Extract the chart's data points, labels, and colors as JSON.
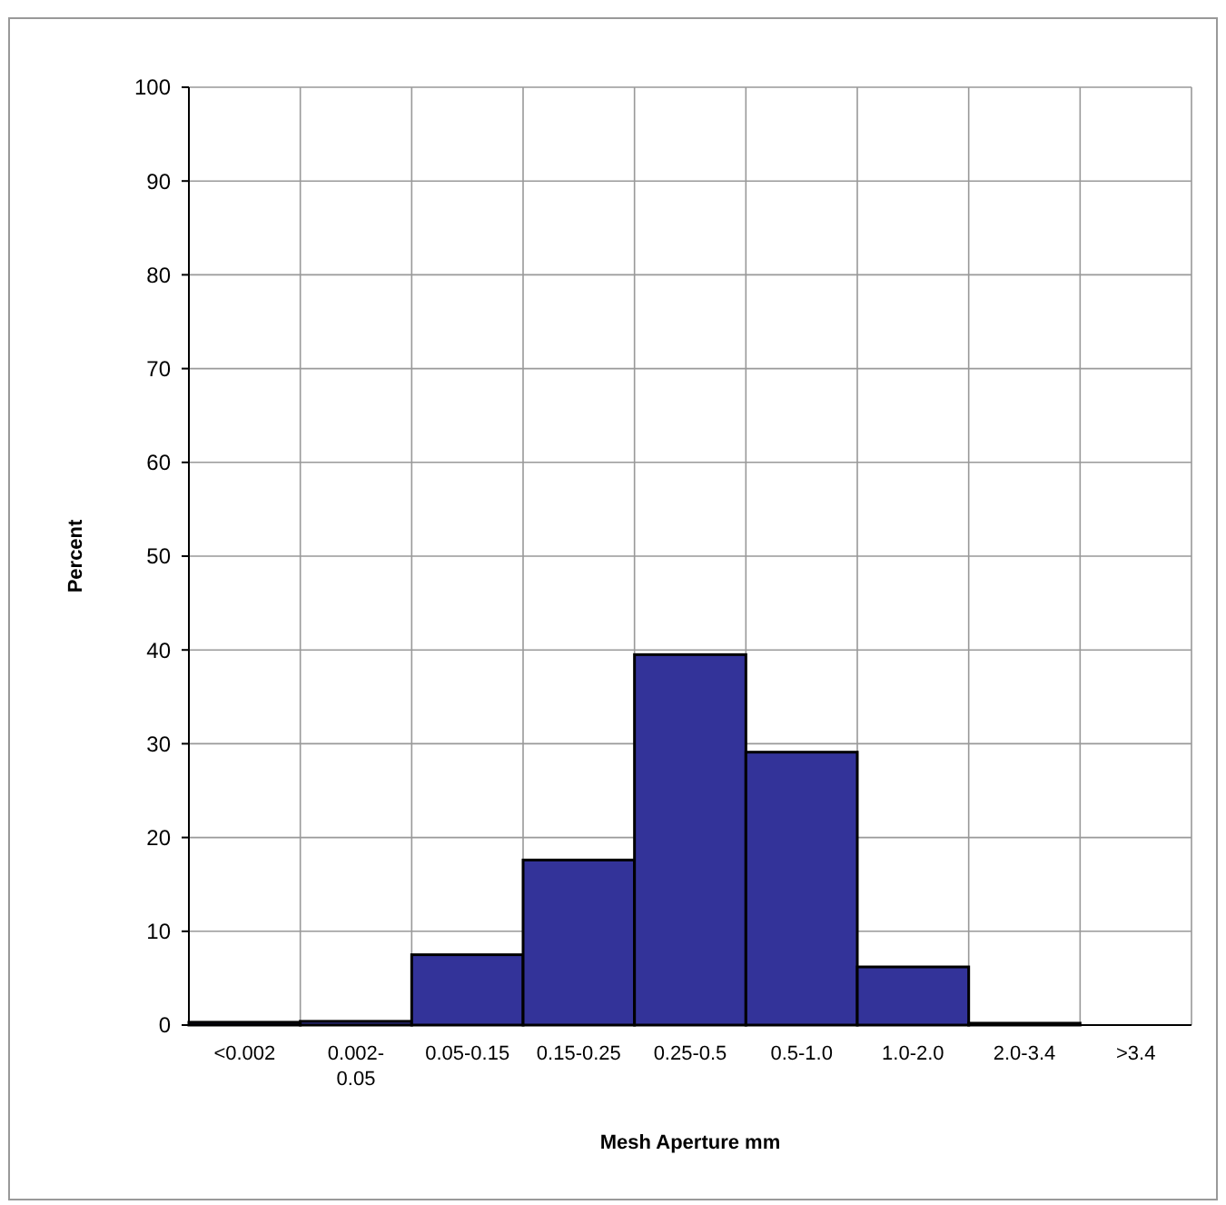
{
  "chart_data": {
    "type": "bar",
    "xlabel": "Mesh Aperture mm",
    "ylabel": "Percent",
    "categories": [
      "<0.002",
      "0.002-0.05",
      "0.05-0.15",
      "0.15-0.25",
      "0.25-0.5",
      "0.5-1.0",
      "1.0-2.0",
      "2.0-3.4",
      ">3.4"
    ],
    "values": [
      0.3,
      0.4,
      7.5,
      17.6,
      39.5,
      29.1,
      6.2,
      0.2,
      0
    ],
    "color": "#333399",
    "ylim": [
      0,
      100
    ],
    "yticks": [
      0,
      10,
      20,
      30,
      40,
      50,
      60,
      70,
      80,
      90,
      100
    ],
    "grid": true
  }
}
